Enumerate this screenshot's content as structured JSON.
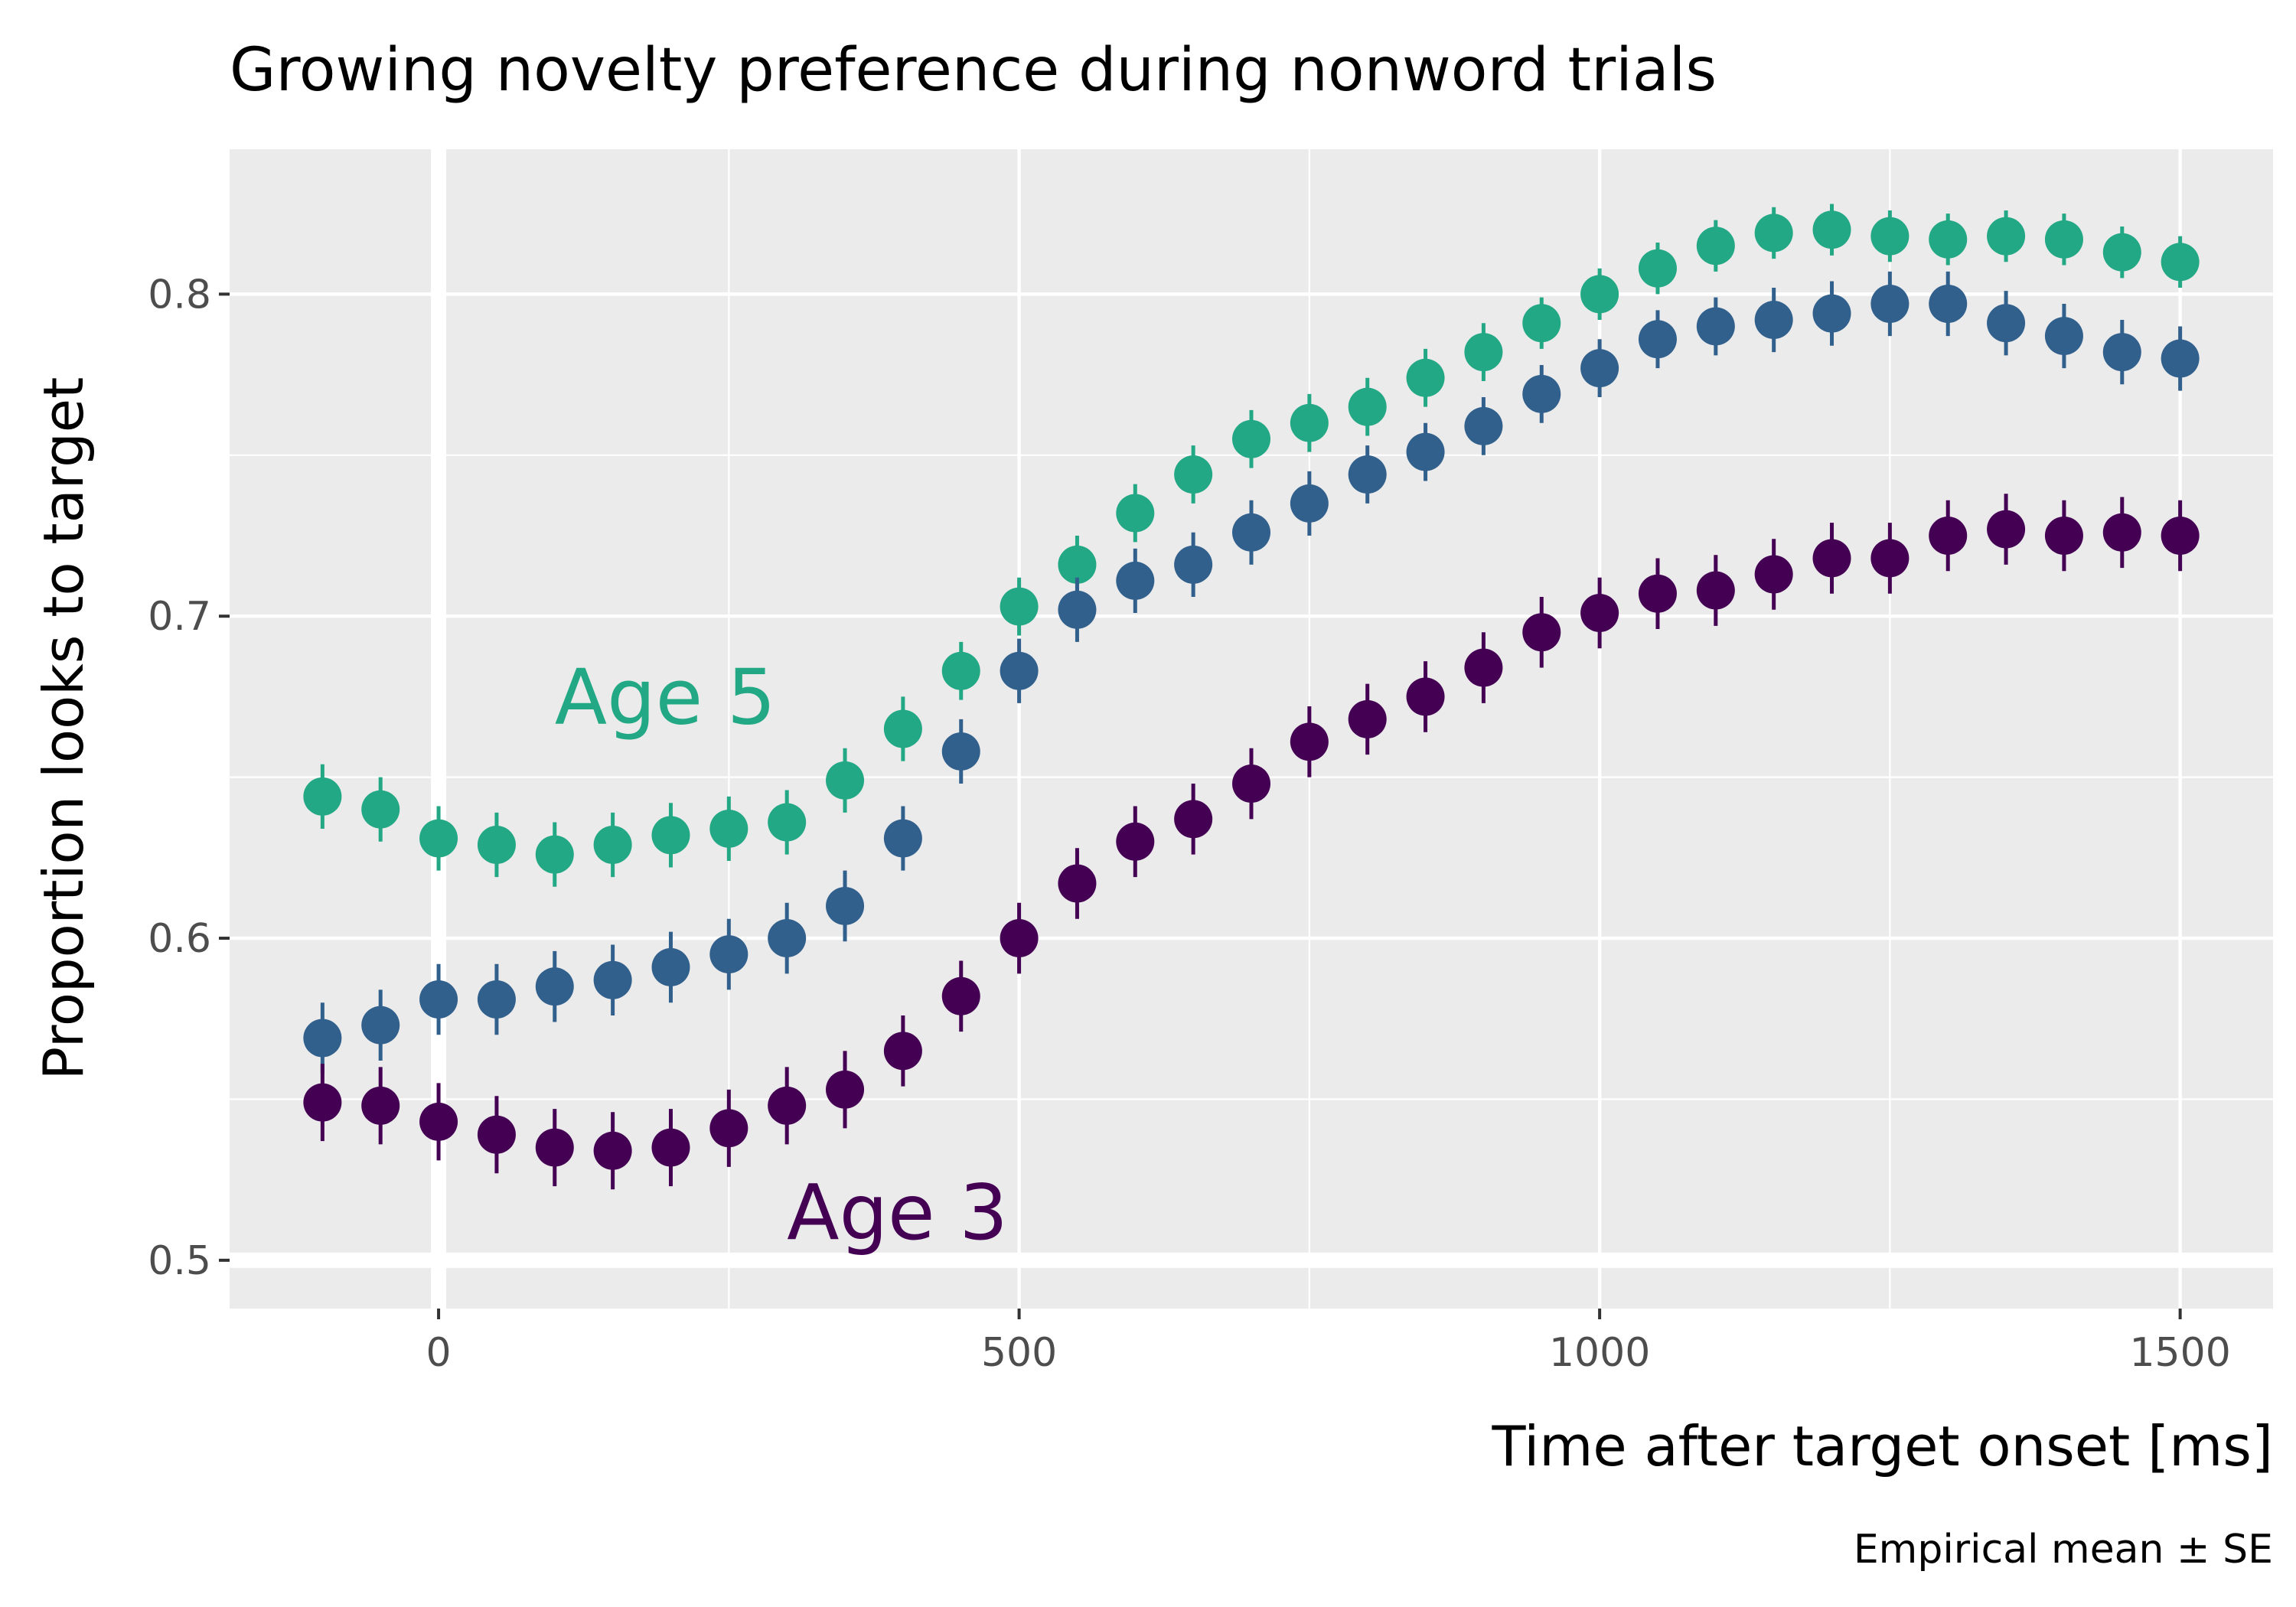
{
  "chart_data": {
    "type": "scatter",
    "title": "Growing novelty preference during nonword trials",
    "xlabel": "Time after target onset [ms]",
    "ylabel": "Proportion looks to target",
    "caption": "Empirical mean ± SE",
    "xlim": [
      -180,
      1580
    ],
    "ylim": [
      0.485,
      0.845
    ],
    "x_ticks": [
      0,
      500,
      1000,
      1500
    ],
    "y_ticks": [
      0.5,
      0.6,
      0.7,
      0.8
    ],
    "x_tick_labels": [
      "0",
      "500",
      "1000",
      "1500"
    ],
    "y_tick_labels": [
      "0.5",
      "0.6",
      "0.7",
      "0.8"
    ],
    "grid": true,
    "reference_lines": {
      "x": 0,
      "y": 0.5
    },
    "x": [
      -100,
      -50,
      0,
      50,
      100,
      150,
      200,
      250,
      300,
      350,
      400,
      450,
      500,
      550,
      600,
      650,
      700,
      750,
      800,
      850,
      900,
      950,
      1000,
      1050,
      1100,
      1150,
      1200,
      1250,
      1300,
      1350,
      1400,
      1450,
      1500
    ],
    "series": [
      {
        "color": "#22a884",
        "label_text": "Age 5",
        "label_at": [
          100,
          0.675
        ],
        "values": [
          0.644,
          0.64,
          0.631,
          0.629,
          0.626,
          0.629,
          0.632,
          0.634,
          0.636,
          0.649,
          0.665,
          0.683,
          0.703,
          0.716,
          0.732,
          0.744,
          0.755,
          0.76,
          0.765,
          0.774,
          0.782,
          0.791,
          0.8,
          0.808,
          0.815,
          0.819,
          0.82,
          0.818,
          0.817,
          0.818,
          0.817,
          0.813,
          0.81
        ],
        "se": [
          0.01,
          0.01,
          0.01,
          0.01,
          0.01,
          0.01,
          0.01,
          0.01,
          0.01,
          0.01,
          0.01,
          0.009,
          0.009,
          0.009,
          0.009,
          0.009,
          0.009,
          0.009,
          0.009,
          0.009,
          0.009,
          0.008,
          0.008,
          0.008,
          0.008,
          0.008,
          0.008,
          0.008,
          0.008,
          0.008,
          0.008,
          0.008,
          0.008
        ]
      },
      {
        "color": "#31608d",
        "values": [
          0.569,
          0.573,
          0.581,
          0.581,
          0.585,
          0.587,
          0.591,
          0.595,
          0.6,
          0.61,
          0.631,
          0.658,
          0.683,
          0.702,
          0.711,
          0.716,
          0.726,
          0.735,
          0.744,
          0.751,
          0.759,
          0.769,
          0.777,
          0.786,
          0.79,
          0.792,
          0.794,
          0.797,
          0.797,
          0.791,
          0.787,
          0.782,
          0.78
        ],
        "se": [
          0.011,
          0.011,
          0.011,
          0.011,
          0.011,
          0.011,
          0.011,
          0.011,
          0.011,
          0.011,
          0.01,
          0.01,
          0.01,
          0.01,
          0.01,
          0.01,
          0.01,
          0.01,
          0.009,
          0.009,
          0.009,
          0.009,
          0.009,
          0.009,
          0.009,
          0.01,
          0.01,
          0.01,
          0.01,
          0.01,
          0.01,
          0.01,
          0.01
        ]
      },
      {
        "color": "#440154",
        "label_text": "Age 3",
        "label_at": [
          300,
          0.515
        ],
        "values": [
          0.549,
          0.548,
          0.543,
          0.539,
          0.535,
          0.534,
          0.535,
          0.541,
          0.548,
          0.553,
          0.565,
          0.582,
          0.6,
          0.617,
          0.63,
          0.637,
          0.648,
          0.661,
          0.668,
          0.675,
          0.684,
          0.695,
          0.701,
          0.707,
          0.708,
          0.713,
          0.718,
          0.718,
          0.725,
          0.727,
          0.725,
          0.726,
          0.725
        ],
        "se": [
          0.012,
          0.012,
          0.012,
          0.012,
          0.012,
          0.012,
          0.012,
          0.012,
          0.012,
          0.012,
          0.011,
          0.011,
          0.011,
          0.011,
          0.011,
          0.011,
          0.011,
          0.011,
          0.011,
          0.011,
          0.011,
          0.011,
          0.011,
          0.011,
          0.011,
          0.011,
          0.011,
          0.011,
          0.011,
          0.011,
          0.011,
          0.011,
          0.011
        ]
      }
    ]
  }
}
